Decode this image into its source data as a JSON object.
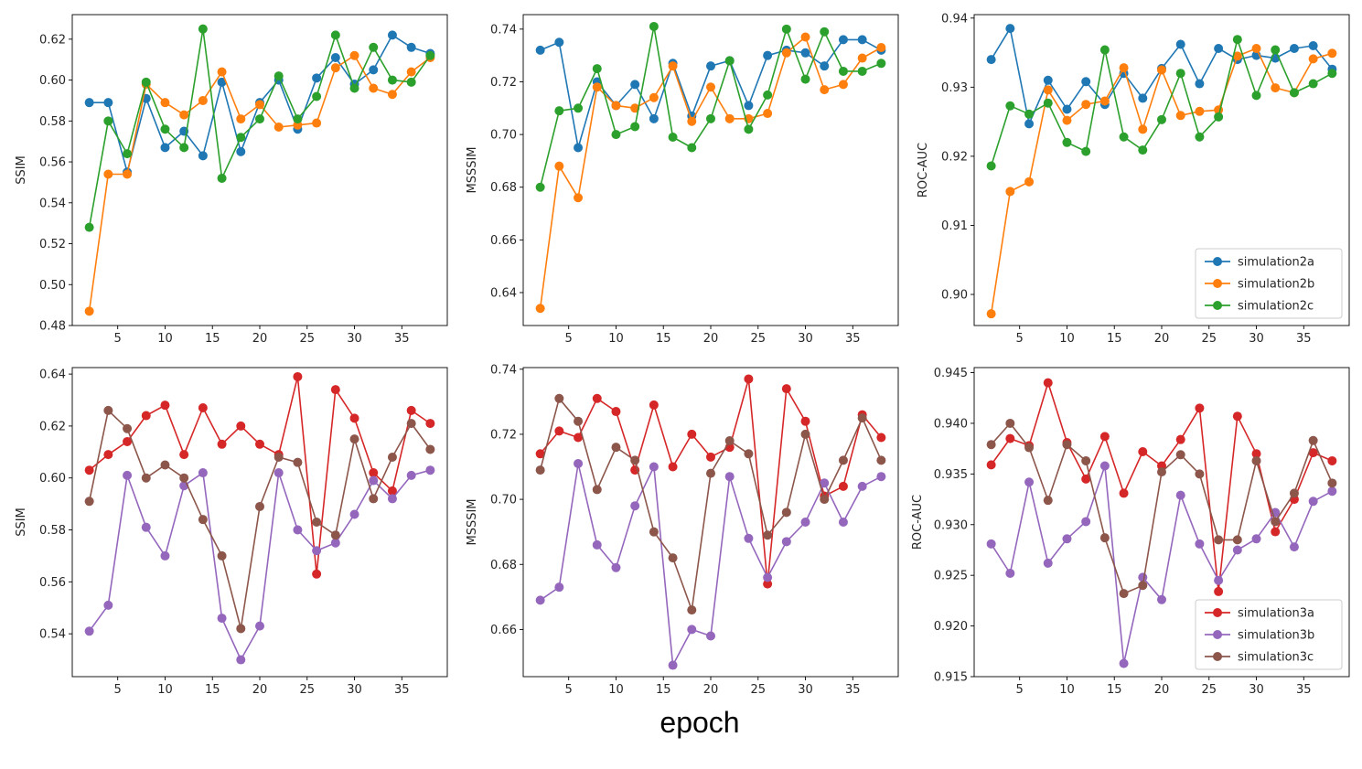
{
  "figure_label": "epoch",
  "colors": {
    "simulation2a": "#1f77b4",
    "simulation2b": "#ff7f0e",
    "simulation2c": "#2ca02c",
    "simulation3a": "#d62728",
    "simulation3b": "#9467bd",
    "simulation3c": "#8c564b"
  },
  "chart_data": [
    {
      "type": "line",
      "ylabel": "SSIM",
      "xlim": [
        0.2,
        39.8
      ],
      "ylim": [
        0.48,
        0.632
      ],
      "xticks": [
        5,
        10,
        15,
        20,
        25,
        30,
        35
      ],
      "yticks": [
        0.48,
        0.5,
        0.52,
        0.54,
        0.56,
        0.58,
        0.6,
        0.62
      ],
      "ytick_labels": [
        "0.48",
        "0.50",
        "0.52",
        "0.54",
        "0.56",
        "0.58",
        "0.60",
        "0.62"
      ],
      "x": [
        2,
        4,
        6,
        8,
        10,
        12,
        14,
        16,
        18,
        20,
        22,
        24,
        26,
        28,
        30,
        32,
        34,
        36,
        38
      ],
      "legend": null,
      "series": [
        {
          "key": "simulation2a",
          "values": [
            0.589,
            0.589,
            0.555,
            0.591,
            0.567,
            0.575,
            0.563,
            0.599,
            0.565,
            0.589,
            0.6,
            0.576,
            0.601,
            0.611,
            0.598,
            0.605,
            0.622,
            0.616,
            0.613
          ]
        },
        {
          "key": "simulation2b",
          "values": [
            0.487,
            0.554,
            0.554,
            0.598,
            0.589,
            0.583,
            0.59,
            0.604,
            0.581,
            0.588,
            0.577,
            0.578,
            0.579,
            0.606,
            0.612,
            0.596,
            0.593,
            0.604,
            0.611
          ]
        },
        {
          "key": "simulation2c",
          "values": [
            0.528,
            0.58,
            0.564,
            0.599,
            0.576,
            0.567,
            0.625,
            0.552,
            0.572,
            0.581,
            0.602,
            0.581,
            0.592,
            0.622,
            0.596,
            0.616,
            0.6,
            0.599,
            0.612
          ]
        }
      ]
    },
    {
      "type": "line",
      "ylabel": "MSSSIM",
      "xlim": [
        0.2,
        39.8
      ],
      "ylim": [
        0.6275,
        0.7455
      ],
      "xticks": [
        5,
        10,
        15,
        20,
        25,
        30,
        35
      ],
      "yticks": [
        0.64,
        0.66,
        0.68,
        0.7,
        0.72,
        0.74
      ],
      "ytick_labels": [
        "0.64",
        "0.66",
        "0.68",
        "0.70",
        "0.72",
        "0.74"
      ],
      "x": [
        2,
        4,
        6,
        8,
        10,
        12,
        14,
        16,
        18,
        20,
        22,
        24,
        26,
        28,
        30,
        32,
        34,
        36,
        38
      ],
      "legend": null,
      "series": [
        {
          "key": "simulation2a",
          "values": [
            0.732,
            0.735,
            0.695,
            0.72,
            0.711,
            0.719,
            0.706,
            0.727,
            0.707,
            0.726,
            0.728,
            0.711,
            0.73,
            0.732,
            0.731,
            0.726,
            0.736,
            0.736,
            0.732
          ]
        },
        {
          "key": "simulation2b",
          "values": [
            0.634,
            0.688,
            0.676,
            0.718,
            0.711,
            0.71,
            0.714,
            0.726,
            0.705,
            0.718,
            0.706,
            0.706,
            0.708,
            0.731,
            0.737,
            0.717,
            0.719,
            0.729,
            0.733
          ]
        },
        {
          "key": "simulation2c",
          "values": [
            0.68,
            0.709,
            0.71,
            0.725,
            0.7,
            0.703,
            0.741,
            0.699,
            0.695,
            0.706,
            0.728,
            0.702,
            0.715,
            0.74,
            0.721,
            0.739,
            0.724,
            0.724,
            0.727
          ]
        }
      ]
    },
    {
      "type": "line",
      "ylabel": "ROC-AUC",
      "xlim": [
        0.2,
        39.8
      ],
      "ylim": [
        0.8955,
        0.9405
      ],
      "xticks": [
        5,
        10,
        15,
        20,
        25,
        30,
        35
      ],
      "yticks": [
        0.9,
        0.91,
        0.92,
        0.93,
        0.94
      ],
      "ytick_labels": [
        "0.90",
        "0.91",
        "0.92",
        "0.93",
        "0.94"
      ],
      "x": [
        2,
        4,
        6,
        8,
        10,
        12,
        14,
        16,
        18,
        20,
        22,
        24,
        26,
        28,
        30,
        32,
        34,
        36,
        38
      ],
      "legend": {
        "position": "lower-right",
        "entries": [
          "simulation2a",
          "simulation2b",
          "simulation2c"
        ]
      },
      "series": [
        {
          "key": "simulation2a",
          "values": [
            0.934,
            0.9385,
            0.9247,
            0.931,
            0.9268,
            0.9308,
            0.9275,
            0.932,
            0.9284,
            0.9327,
            0.9362,
            0.9305,
            0.9356,
            0.934,
            0.9346,
            0.9342,
            0.9356,
            0.936,
            0.9326
          ]
        },
        {
          "key": "simulation2b",
          "values": [
            0.8972,
            0.9149,
            0.9163,
            0.9296,
            0.9252,
            0.9275,
            0.928,
            0.9328,
            0.9239,
            0.9325,
            0.9259,
            0.9265,
            0.9267,
            0.9345,
            0.9356,
            0.9299,
            0.9292,
            0.9341,
            0.9349
          ]
        },
        {
          "key": "simulation2c",
          "values": [
            0.9186,
            0.9273,
            0.9261,
            0.9277,
            0.922,
            0.9207,
            0.9354,
            0.9228,
            0.9209,
            0.9253,
            0.932,
            0.9228,
            0.9257,
            0.9369,
            0.9288,
            0.9354,
            0.9292,
            0.9305,
            0.932
          ]
        }
      ]
    },
    {
      "type": "line",
      "ylabel": "SSIM",
      "xlim": [
        0.2,
        39.8
      ],
      "ylim": [
        0.5235,
        0.6425
      ],
      "xticks": [
        5,
        10,
        15,
        20,
        25,
        30,
        35
      ],
      "yticks": [
        0.54,
        0.56,
        0.58,
        0.6,
        0.62,
        0.64
      ],
      "ytick_labels": [
        "0.54",
        "0.56",
        "0.58",
        "0.60",
        "0.62",
        "0.64"
      ],
      "x": [
        2,
        4,
        6,
        8,
        10,
        12,
        14,
        16,
        18,
        20,
        22,
        24,
        26,
        28,
        30,
        32,
        34,
        36,
        38
      ],
      "legend": null,
      "series": [
        {
          "key": "simulation3a",
          "values": [
            0.603,
            0.609,
            0.614,
            0.624,
            0.628,
            0.609,
            0.627,
            0.613,
            0.62,
            0.613,
            0.609,
            0.639,
            0.563,
            0.634,
            0.623,
            0.602,
            0.595,
            0.626,
            0.621
          ]
        },
        {
          "key": "simulation3b",
          "values": [
            0.541,
            0.551,
            0.601,
            0.581,
            0.57,
            0.597,
            0.602,
            0.546,
            0.53,
            0.543,
            0.602,
            0.58,
            0.572,
            0.575,
            0.586,
            0.599,
            0.592,
            0.601,
            0.603
          ]
        },
        {
          "key": "simulation3c",
          "values": [
            0.591,
            0.626,
            0.619,
            0.6,
            0.605,
            0.6,
            0.584,
            0.57,
            0.542,
            0.589,
            0.608,
            0.606,
            0.583,
            0.578,
            0.615,
            0.592,
            0.608,
            0.621,
            0.611
          ]
        }
      ]
    },
    {
      "type": "line",
      "ylabel": "MSSSIM",
      "xlim": [
        0.2,
        39.8
      ],
      "ylim": [
        0.6455,
        0.7405
      ],
      "xticks": [
        5,
        10,
        15,
        20,
        25,
        30,
        35
      ],
      "yticks": [
        0.66,
        0.68,
        0.7,
        0.72,
        0.74
      ],
      "ytick_labels": [
        "0.66",
        "0.68",
        "0.70",
        "0.72",
        "0.74"
      ],
      "x": [
        2,
        4,
        6,
        8,
        10,
        12,
        14,
        16,
        18,
        20,
        22,
        24,
        26,
        28,
        30,
        32,
        34,
        36,
        38
      ],
      "legend": null,
      "series": [
        {
          "key": "simulation3a",
          "values": [
            0.714,
            0.721,
            0.719,
            0.731,
            0.727,
            0.709,
            0.729,
            0.71,
            0.72,
            0.713,
            0.716,
            0.737,
            0.674,
            0.734,
            0.724,
            0.701,
            0.704,
            0.726,
            0.719
          ]
        },
        {
          "key": "simulation3b",
          "values": [
            0.669,
            0.673,
            0.711,
            0.686,
            0.679,
            0.698,
            0.71,
            0.649,
            0.66,
            0.658,
            0.707,
            0.688,
            0.676,
            0.687,
            0.693,
            0.705,
            0.693,
            0.704,
            0.707
          ]
        },
        {
          "key": "simulation3c",
          "values": [
            0.709,
            0.731,
            0.724,
            0.703,
            0.716,
            0.712,
            0.69,
            0.682,
            0.666,
            0.708,
            0.718,
            0.714,
            0.689,
            0.696,
            0.72,
            0.7,
            0.712,
            0.725,
            0.712
          ]
        }
      ]
    },
    {
      "type": "line",
      "ylabel": "ROC-AUC",
      "xlim": [
        0.2,
        39.8
      ],
      "ylim": [
        0.915,
        0.9455
      ],
      "xticks": [
        5,
        10,
        15,
        20,
        25,
        30,
        35
      ],
      "yticks": [
        0.915,
        0.92,
        0.925,
        0.93,
        0.935,
        0.94,
        0.945
      ],
      "ytick_labels": [
        "0.915",
        "0.920",
        "0.925",
        "0.930",
        "0.935",
        "0.940",
        "0.945"
      ],
      "x": [
        2,
        4,
        6,
        8,
        10,
        12,
        14,
        16,
        18,
        20,
        22,
        24,
        26,
        28,
        30,
        32,
        34,
        36,
        38
      ],
      "legend": {
        "position": "lower-right",
        "entries": [
          "simulation3a",
          "simulation3b",
          "simulation3c"
        ]
      },
      "series": [
        {
          "key": "simulation3a",
          "values": [
            0.9359,
            0.9385,
            0.9378,
            0.944,
            0.9381,
            0.9345,
            0.9387,
            0.9331,
            0.9372,
            0.9358,
            0.9384,
            0.9415,
            0.9234,
            0.9407,
            0.937,
            0.9293,
            0.9325,
            0.9371,
            0.9363
          ]
        },
        {
          "key": "simulation3b",
          "values": [
            0.9281,
            0.9252,
            0.9342,
            0.9262,
            0.9286,
            0.9303,
            0.9358,
            0.9163,
            0.9248,
            0.9226,
            0.9329,
            0.9281,
            0.9245,
            0.9275,
            0.9286,
            0.9312,
            0.9278,
            0.9323,
            0.9333
          ]
        },
        {
          "key": "simulation3c",
          "values": [
            0.9379,
            0.94,
            0.9376,
            0.9324,
            0.9379,
            0.9363,
            0.9287,
            0.9232,
            0.924,
            0.9352,
            0.9369,
            0.935,
            0.9285,
            0.9285,
            0.9363,
            0.9303,
            0.9331,
            0.9383,
            0.9341
          ]
        }
      ]
    }
  ]
}
